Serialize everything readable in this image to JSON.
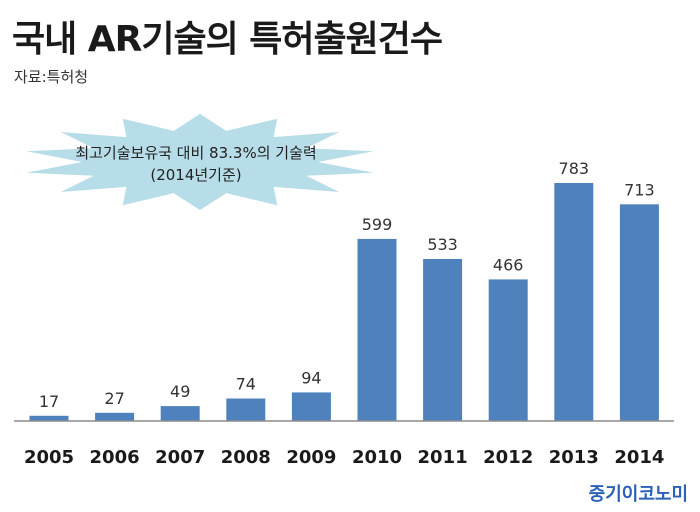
{
  "header": {
    "title": "국내 AR기술의 특허출원건수",
    "source": "자료:특허청"
  },
  "annotation": {
    "line1": "최고기술보유국 대비 83.3%의 기술력",
    "line2": "(2014년기준)"
  },
  "footer": {
    "credit": "중기이코노미"
  },
  "colors": {
    "bar": "#4f81bd",
    "burst": "#b7dde8",
    "axis": "#8c8c8c",
    "credit": "#2a62b8"
  },
  "chart_data": {
    "type": "bar",
    "categories": [
      "2005",
      "2006",
      "2007",
      "2008",
      "2009",
      "2010",
      "2011",
      "2012",
      "2013",
      "2014"
    ],
    "values": [
      17,
      27,
      49,
      74,
      94,
      599,
      533,
      466,
      783,
      713
    ],
    "title": "국내 AR기술의 특허출원건수",
    "ylim": [
      0,
      1000
    ],
    "grid": false,
    "legend": "none"
  }
}
